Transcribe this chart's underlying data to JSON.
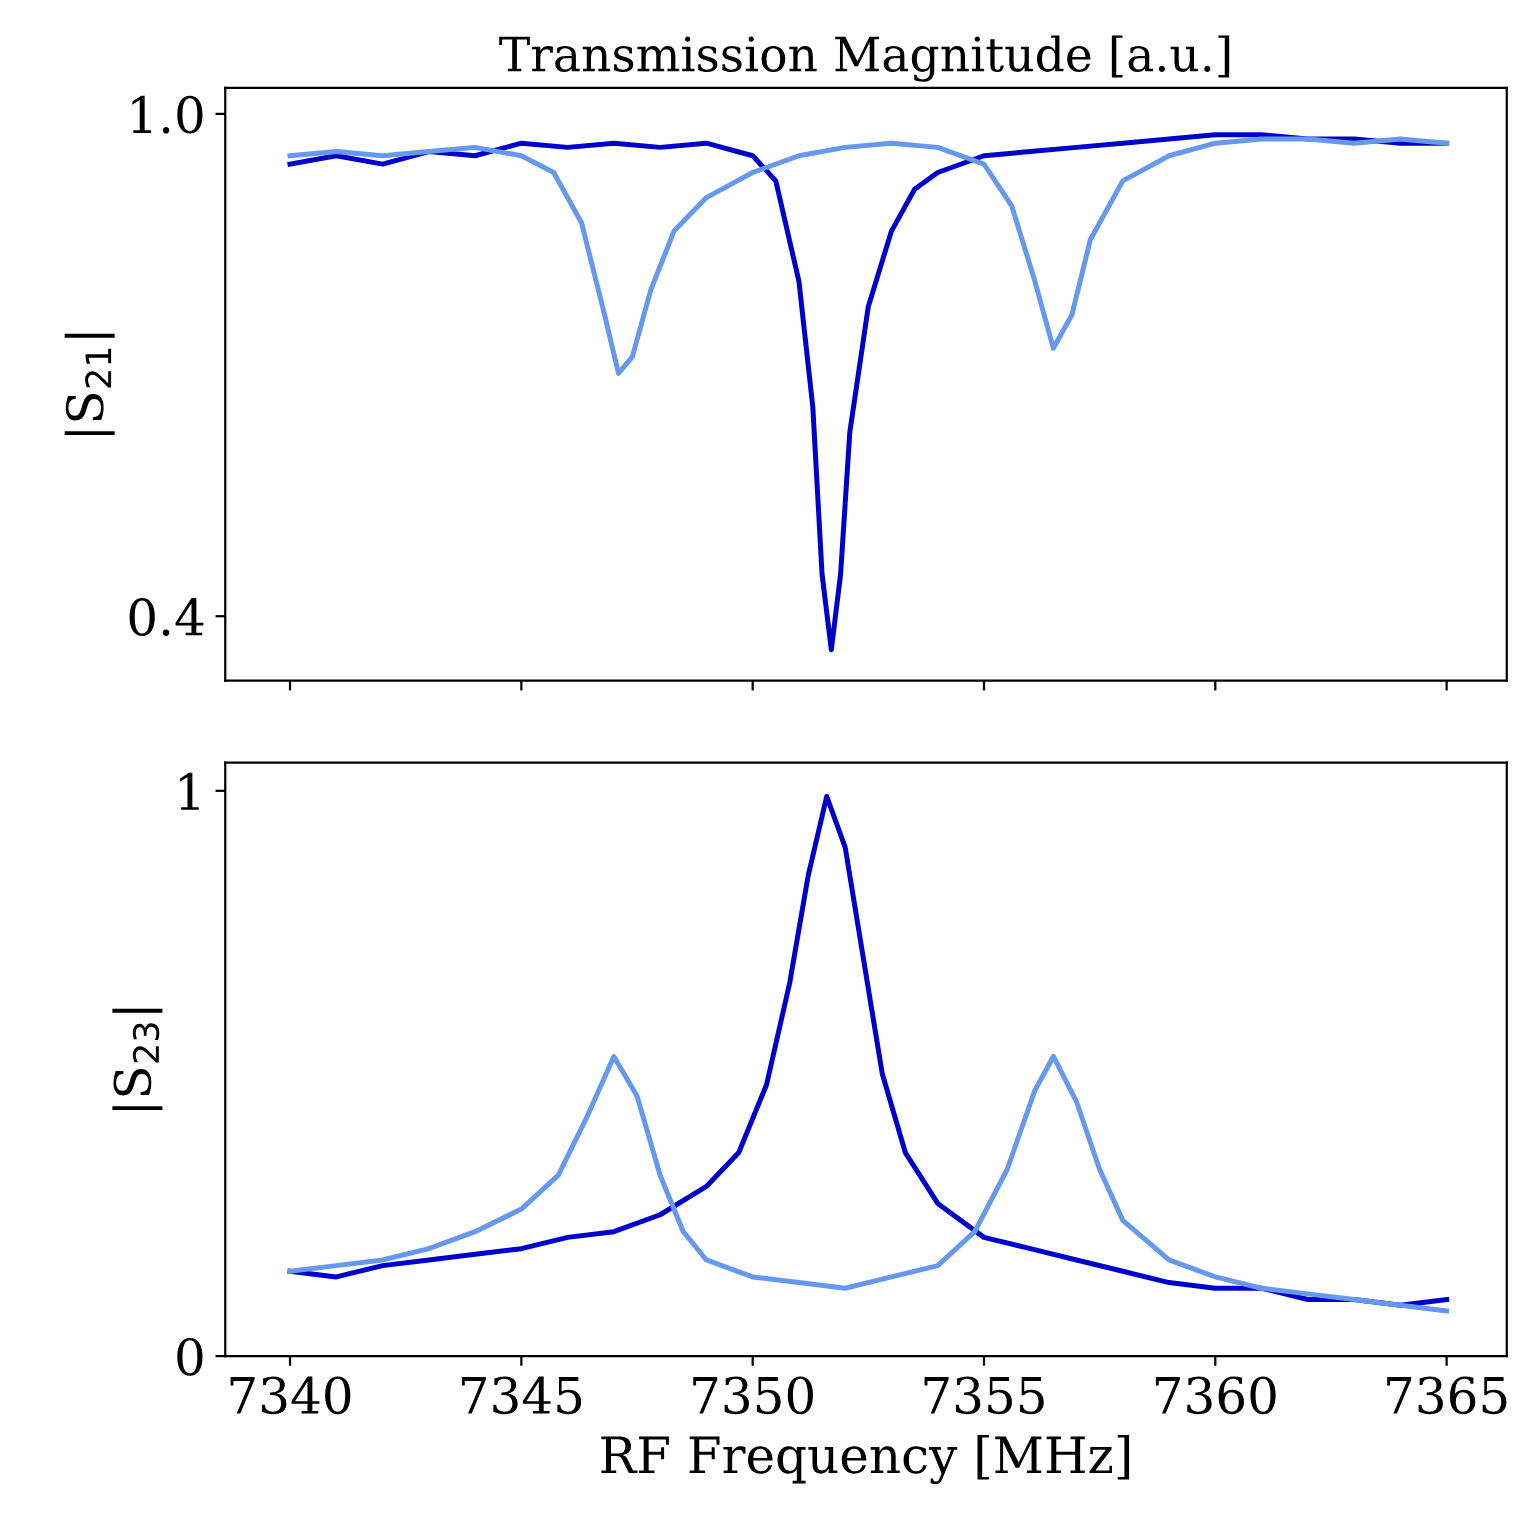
{
  "chart_data": [
    {
      "type": "line",
      "title": "Transmission Magnitude [a.u.]",
      "ylabel": "|S$_{21}$|",
      "xlim": [
        7338.6,
        7366.3
      ],
      "xticks": [
        7340,
        7345,
        7350,
        7355,
        7360,
        7365
      ],
      "ylim": [
        0.323,
        1.031
      ],
      "yticks": [
        {
          "value": 1.0,
          "label": "1.0"
        },
        0.4
      ],
      "tick_labels": "y",
      "grid": false,
      "legend": false,
      "series": [
        {
          "color": "#0000cc",
          "x": [
            7340,
            7341,
            7342,
            7343,
            7344,
            7345,
            7346,
            7347,
            7348,
            7349,
            7350,
            7350.5,
            7351,
            7351.3,
            7351.5,
            7351.7,
            7351.9,
            7352.1,
            7352.5,
            7353,
            7353.5,
            7354,
            7355,
            7356,
            7357,
            7358,
            7359,
            7360,
            7361,
            7362,
            7363,
            7364,
            7365
          ],
          "values": [
            0.94,
            0.95,
            0.94,
            0.955,
            0.95,
            0.965,
            0.96,
            0.965,
            0.96,
            0.965,
            0.95,
            0.92,
            0.8,
            0.65,
            0.45,
            0.36,
            0.45,
            0.62,
            0.77,
            0.86,
            0.91,
            0.93,
            0.95,
            0.955,
            0.96,
            0.965,
            0.97,
            0.975,
            0.975,
            0.97,
            0.97,
            0.965,
            0.965
          ]
        },
        {
          "color": "#6699ee",
          "x": [
            7340,
            7341,
            7342,
            7343,
            7344,
            7345,
            7345.7,
            7346.3,
            7346.8,
            7347.1,
            7347.4,
            7347.8,
            7348.3,
            7349,
            7350,
            7351,
            7352,
            7353,
            7354,
            7355,
            7355.6,
            7356.1,
            7356.5,
            7356.9,
            7357.3,
            7358,
            7359,
            7360,
            7361,
            7362,
            7363,
            7364,
            7365
          ],
          "values": [
            0.95,
            0.955,
            0.95,
            0.955,
            0.96,
            0.95,
            0.93,
            0.87,
            0.76,
            0.69,
            0.71,
            0.79,
            0.86,
            0.9,
            0.93,
            0.95,
            0.96,
            0.965,
            0.96,
            0.94,
            0.89,
            0.8,
            0.72,
            0.76,
            0.85,
            0.92,
            0.95,
            0.965,
            0.97,
            0.97,
            0.965,
            0.97,
            0.965
          ]
        }
      ]
    },
    {
      "type": "line",
      "xlabel": "RF Frequency [MHz]",
      "ylabel": "|S$_{23}$|",
      "xlim": [
        7338.6,
        7366.3
      ],
      "xticks": [
        7340,
        7345,
        7350,
        7355,
        7360,
        7365
      ],
      "ylim": [
        0,
        1.05
      ],
      "yticks": [
        0,
        1
      ],
      "grid": false,
      "legend": false,
      "series": [
        {
          "color": "#0000cc",
          "x": [
            7340,
            7341,
            7342,
            7343,
            7344,
            7345,
            7346,
            7347,
            7348,
            7349,
            7349.7,
            7350.3,
            7350.8,
            7351.2,
            7351.6,
            7352,
            7352.4,
            7352.8,
            7353.3,
            7354,
            7355,
            7356,
            7357,
            7358,
            7359,
            7360,
            7361,
            7362,
            7363,
            7364,
            7365
          ],
          "values": [
            0.15,
            0.14,
            0.16,
            0.17,
            0.18,
            0.19,
            0.21,
            0.22,
            0.25,
            0.3,
            0.36,
            0.48,
            0.66,
            0.85,
            0.99,
            0.9,
            0.7,
            0.5,
            0.36,
            0.27,
            0.21,
            0.19,
            0.17,
            0.15,
            0.13,
            0.12,
            0.12,
            0.1,
            0.1,
            0.09,
            0.1
          ]
        },
        {
          "color": "#6699ee",
          "x": [
            7340,
            7341,
            7342,
            7343,
            7344,
            7345,
            7345.8,
            7346.4,
            7347,
            7347.5,
            7348,
            7348.5,
            7349,
            7350,
            7351,
            7352,
            7353,
            7354,
            7354.8,
            7355.5,
            7356.1,
            7356.5,
            7357,
            7357.5,
            7358,
            7359,
            7360,
            7361,
            7362,
            7363,
            7364,
            7365
          ],
          "values": [
            0.15,
            0.16,
            0.17,
            0.19,
            0.22,
            0.26,
            0.32,
            0.42,
            0.53,
            0.46,
            0.32,
            0.22,
            0.17,
            0.14,
            0.13,
            0.12,
            0.14,
            0.16,
            0.22,
            0.33,
            0.47,
            0.53,
            0.45,
            0.33,
            0.24,
            0.17,
            0.14,
            0.12,
            0.11,
            0.1,
            0.09,
            0.08
          ]
        }
      ]
    }
  ]
}
